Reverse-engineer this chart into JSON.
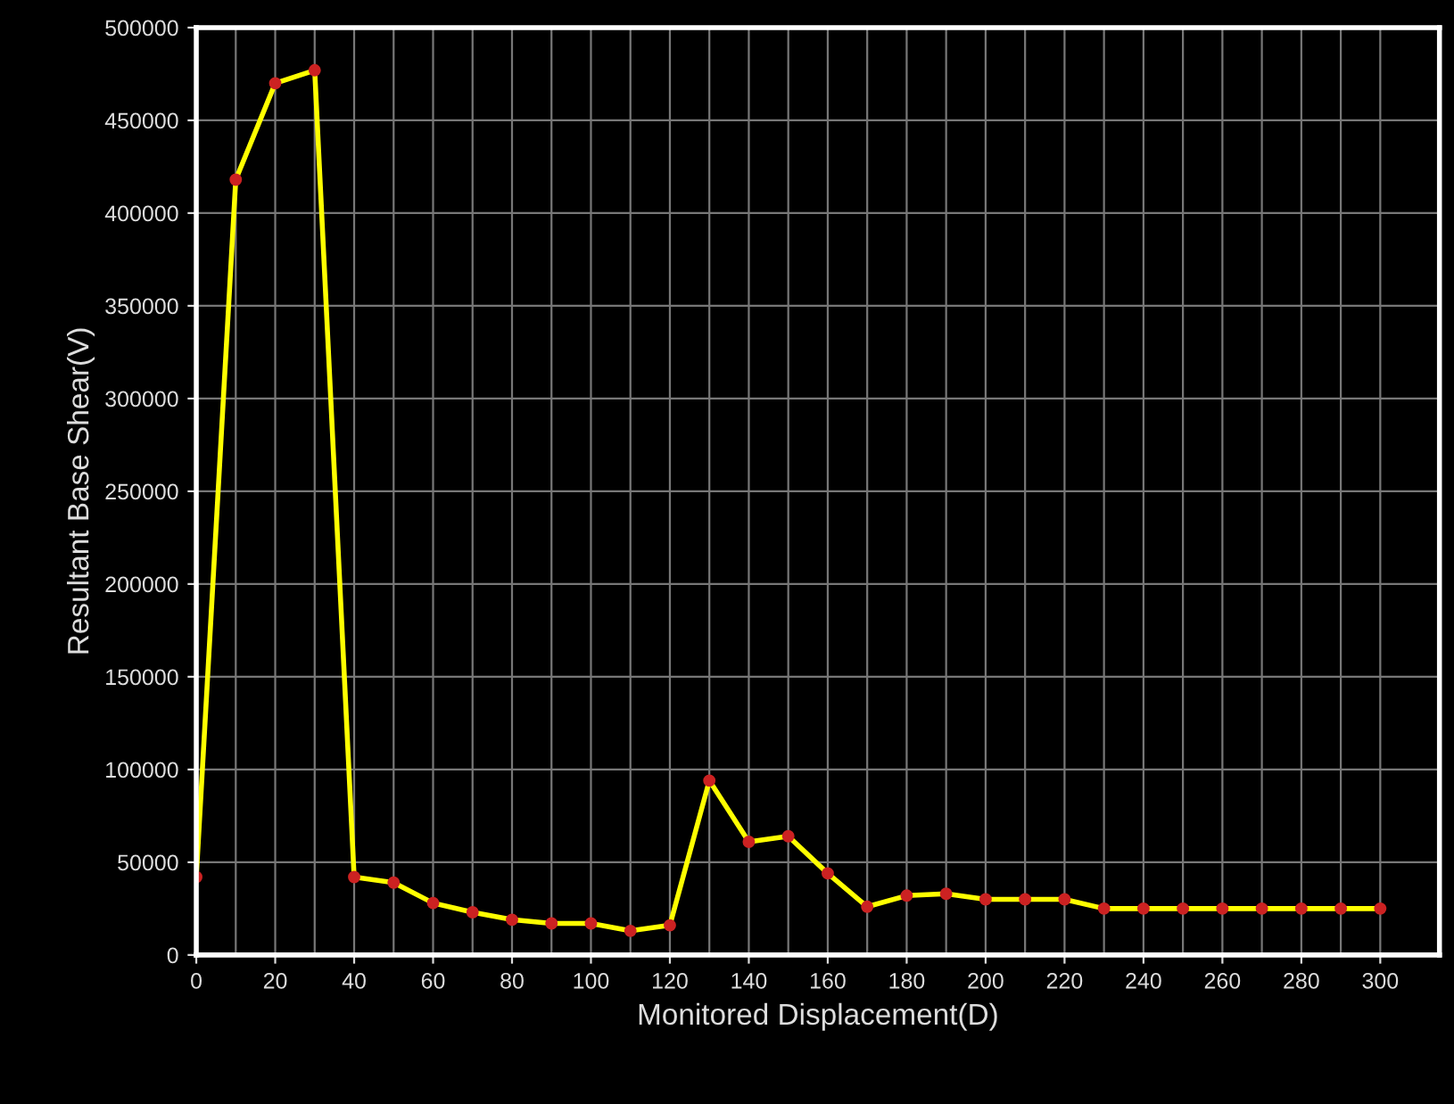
{
  "chart_data": {
    "type": "line",
    "xlabel": "Monitored Displacement(D)",
    "ylabel": "Resultant Base Shear(V)",
    "x": [
      0,
      10,
      20,
      30,
      40,
      50,
      60,
      70,
      80,
      90,
      100,
      110,
      120,
      130,
      140,
      150,
      160,
      170,
      180,
      190,
      200,
      210,
      220,
      230,
      240,
      250,
      260,
      270,
      280,
      290,
      300
    ],
    "series": [
      {
        "color": "#ffff00",
        "values": [
          42000,
          418000,
          470000,
          477000,
          42000,
          39000,
          28000,
          23000,
          19000,
          17000,
          17000,
          13000,
          16000,
          94000,
          61000,
          64000,
          44000,
          26000,
          32000,
          33000,
          30000,
          30000,
          30000,
          25000,
          25000,
          25000,
          25000,
          25000,
          25000,
          25000,
          25000
        ]
      }
    ],
    "xlim": [
      0,
      315
    ],
    "ylim": [
      0,
      500000
    ],
    "xticks": [
      0,
      {
        "value": 10,
        "label": null
      },
      20,
      {
        "value": 30,
        "label": null
      },
      40,
      {
        "value": 50,
        "label": null
      },
      60,
      {
        "value": 70,
        "label": null
      },
      80,
      {
        "value": 90,
        "label": null
      },
      100,
      {
        "value": 110,
        "label": null
      },
      120,
      {
        "value": 130,
        "label": null
      },
      140,
      {
        "value": 150,
        "label": null
      },
      160,
      {
        "value": 170,
        "label": null
      },
      180,
      {
        "value": 190,
        "label": null
      },
      200,
      {
        "value": 210,
        "label": null
      },
      220,
      {
        "value": 230,
        "label": null
      },
      240,
      {
        "value": 250,
        "label": null
      },
      260,
      {
        "value": 270,
        "label": null
      },
      280,
      {
        "value": 290,
        "label": null
      },
      300
    ],
    "yticks": [
      0,
      50000,
      100000,
      150000,
      200000,
      250000,
      300000,
      350000,
      400000,
      450000,
      500000
    ],
    "grid": true,
    "marker": "circle",
    "line_style": "solid",
    "legend": false
  }
}
